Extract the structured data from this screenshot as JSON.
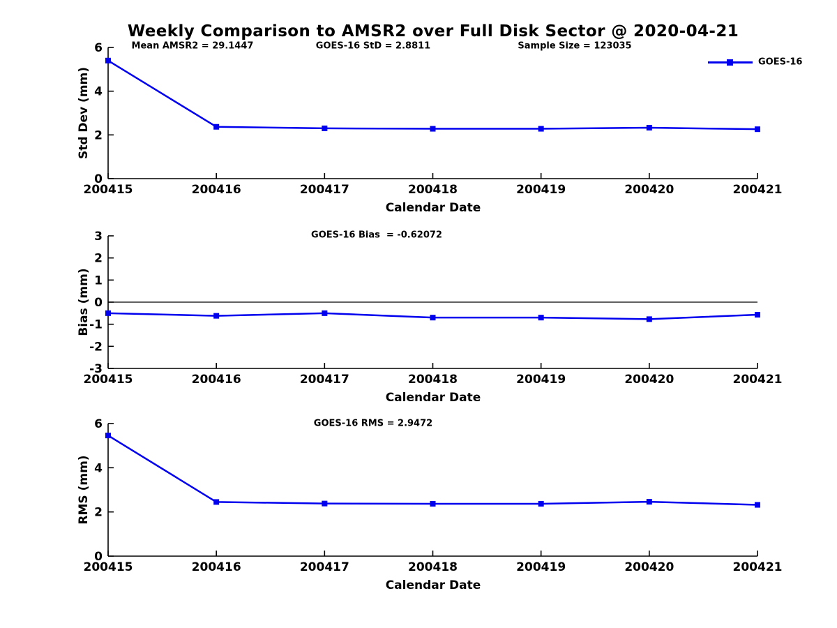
{
  "title": "Weekly Comparison to AMSR2 over Full Disk Sector @ 2020-04-21",
  "legend": {
    "label": "GOES-16",
    "position": "top-right"
  },
  "colors": {
    "line": "#0000EE",
    "axis": "#000000",
    "zero_line": "#000000",
    "text": "#000000",
    "background": "#FFFFFF"
  },
  "chart_data": [
    {
      "type": "line",
      "x_categories": [
        "200415",
        "200416",
        "200417",
        "200418",
        "200419",
        "200420",
        "200421"
      ],
      "xlabel": "Calendar Date",
      "ylabel": "Std Dev (mm)",
      "ylim": [
        0,
        6
      ],
      "yticks": [
        "0",
        "2",
        "4",
        "6"
      ],
      "grid": false,
      "marker": "square",
      "series": [
        {
          "name": "GOES-16",
          "values": [
            5.4,
            2.37,
            2.3,
            2.28,
            2.28,
            2.33,
            2.26
          ]
        }
      ],
      "annotations": [
        "Mean AMSR2 = 29.1447",
        "GOES-16 StD = 2.8811",
        "Sample Size = 123035"
      ]
    },
    {
      "type": "line",
      "x_categories": [
        "200415",
        "200416",
        "200417",
        "200418",
        "200419",
        "200420",
        "200421"
      ],
      "xlabel": "Calendar Date",
      "ylabel": "Bias (mm)",
      "ylim": [
        -3,
        3
      ],
      "yticks": [
        "-3",
        "-2",
        "-1",
        "0",
        "1",
        "2",
        "3"
      ],
      "zero_line": true,
      "grid": false,
      "marker": "square",
      "series": [
        {
          "name": "GOES-16",
          "values": [
            -0.5,
            -0.62,
            -0.5,
            -0.7,
            -0.7,
            -0.77,
            -0.57
          ]
        }
      ],
      "annotations": [
        "GOES-16 Bias  = -0.62072"
      ]
    },
    {
      "type": "line",
      "x_categories": [
        "200415",
        "200416",
        "200417",
        "200418",
        "200419",
        "200420",
        "200421"
      ],
      "xlabel": "Calendar Date",
      "ylabel": "RMS (mm)",
      "ylim": [
        0,
        6
      ],
      "yticks": [
        "0",
        "2",
        "4",
        "6"
      ],
      "grid": false,
      "marker": "square",
      "series": [
        {
          "name": "GOES-16",
          "values": [
            5.46,
            2.45,
            2.38,
            2.37,
            2.37,
            2.46,
            2.32
          ]
        }
      ],
      "annotations": [
        "GOES-16 RMS = 2.9472"
      ]
    }
  ]
}
